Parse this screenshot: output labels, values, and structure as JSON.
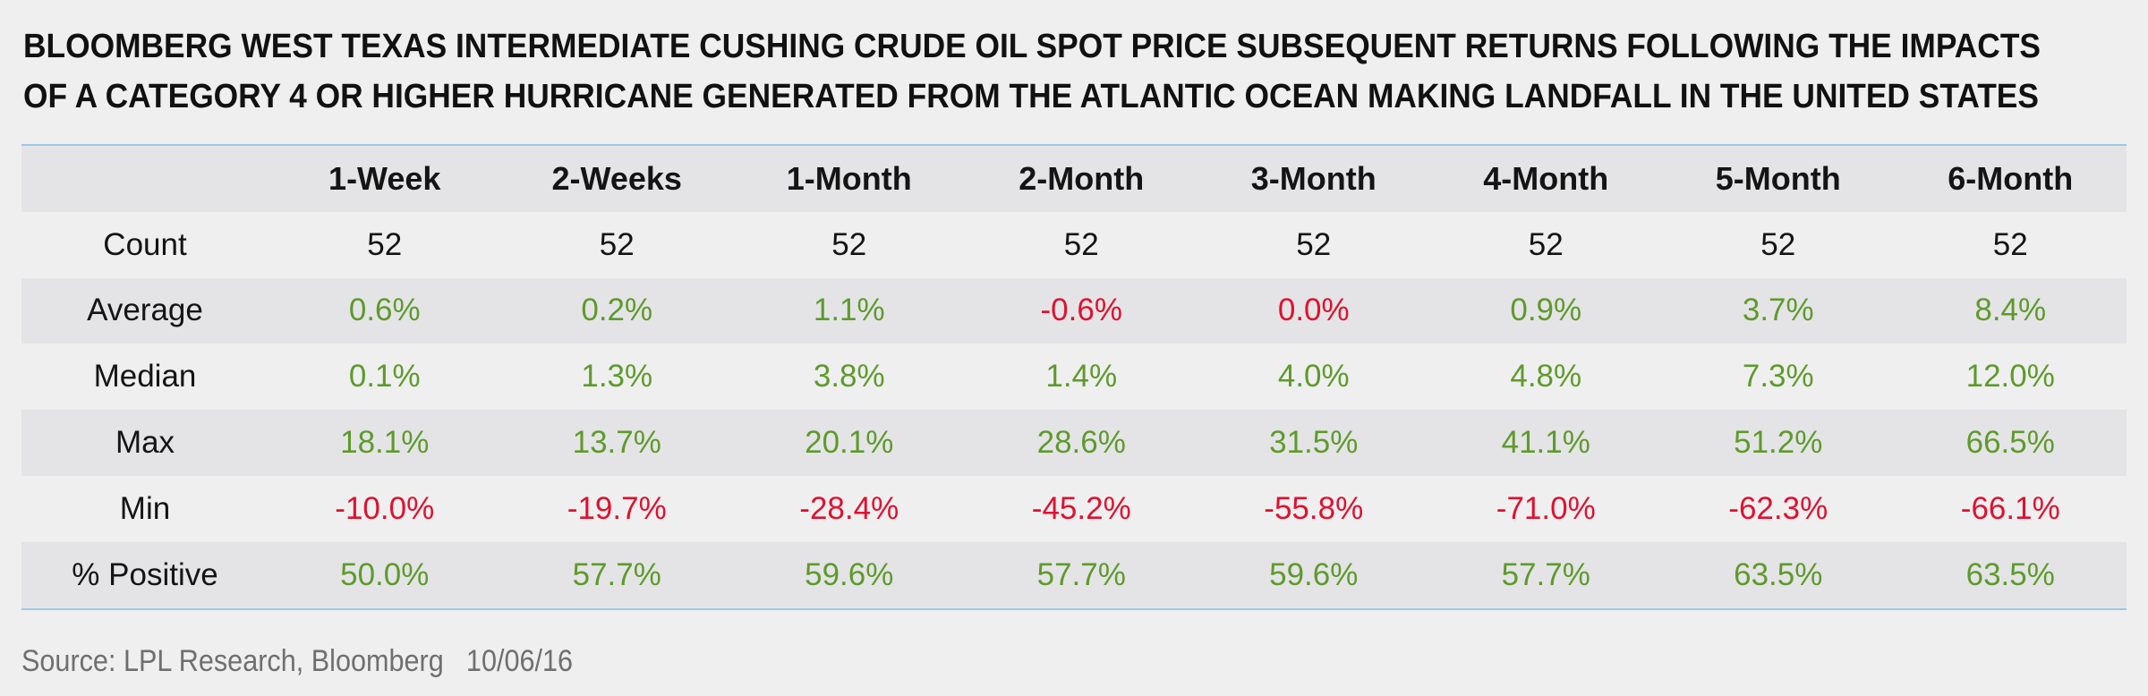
{
  "chart_data": {
    "type": "table",
    "title": [
      "BLOOMBERG WEST TEXAS INTERMEDIATE CUSHING CRUDE OIL SPOT PRICE SUBSEQUENT RETURNS FOLLOWING THE IMPACTS",
      "OF A CATEGORY 4 OR HIGHER HURRICANE GENERATED FROM THE ATLANTIC OCEAN MAKING LANDFALL IN THE UNITED STATES"
    ],
    "columns": [
      "",
      "1-Week",
      "2-Weeks",
      "1-Month",
      "2-Month",
      "3-Month",
      "4-Month",
      "5-Month",
      "6-Month"
    ],
    "rows": [
      {
        "label": "Count",
        "values": [
          "52",
          "52",
          "52",
          "52",
          "52",
          "52",
          "52",
          "52"
        ],
        "tones": [
          "n",
          "n",
          "n",
          "n",
          "n",
          "n",
          "n",
          "n"
        ]
      },
      {
        "label": "Average",
        "values": [
          "0.6%",
          "0.2%",
          "1.1%",
          "-0.6%",
          "0.0%",
          "0.9%",
          "3.7%",
          "8.4%"
        ],
        "tones": [
          "pos",
          "pos",
          "pos",
          "neg",
          "neg",
          "pos",
          "pos",
          "pos"
        ]
      },
      {
        "label": "Median",
        "values": [
          "0.1%",
          "1.3%",
          "3.8%",
          "1.4%",
          "4.0%",
          "4.8%",
          "7.3%",
          "12.0%"
        ],
        "tones": [
          "pos",
          "pos",
          "pos",
          "pos",
          "pos",
          "pos",
          "pos",
          "pos"
        ]
      },
      {
        "label": "Max",
        "values": [
          "18.1%",
          "13.7%",
          "20.1%",
          "28.6%",
          "31.5%",
          "41.1%",
          "51.2%",
          "66.5%"
        ],
        "tones": [
          "pos",
          "pos",
          "pos",
          "pos",
          "pos",
          "pos",
          "pos",
          "pos"
        ]
      },
      {
        "label": "Min",
        "values": [
          "-10.0%",
          "-19.7%",
          "-28.4%",
          "-45.2%",
          "-55.8%",
          "-71.0%",
          "-62.3%",
          "-66.1%"
        ],
        "tones": [
          "neg",
          "neg",
          "neg",
          "neg",
          "neg",
          "neg",
          "neg",
          "neg"
        ]
      },
      {
        "label": "% Positive",
        "values": [
          "50.0%",
          "57.7%",
          "59.6%",
          "57.7%",
          "59.6%",
          "57.7%",
          "63.5%",
          "63.5%"
        ],
        "tones": [
          "pos",
          "pos",
          "pos",
          "pos",
          "pos",
          "pos",
          "pos",
          "pos"
        ]
      }
    ],
    "colors": {
      "positive": "#5e9a2c",
      "negative": "#e0102f",
      "shade": "#e4e4e6",
      "rule": "#9cc9e6"
    }
  },
  "footer": {
    "source": "Source: LPL Research, Bloomberg",
    "date": "10/06/16"
  }
}
